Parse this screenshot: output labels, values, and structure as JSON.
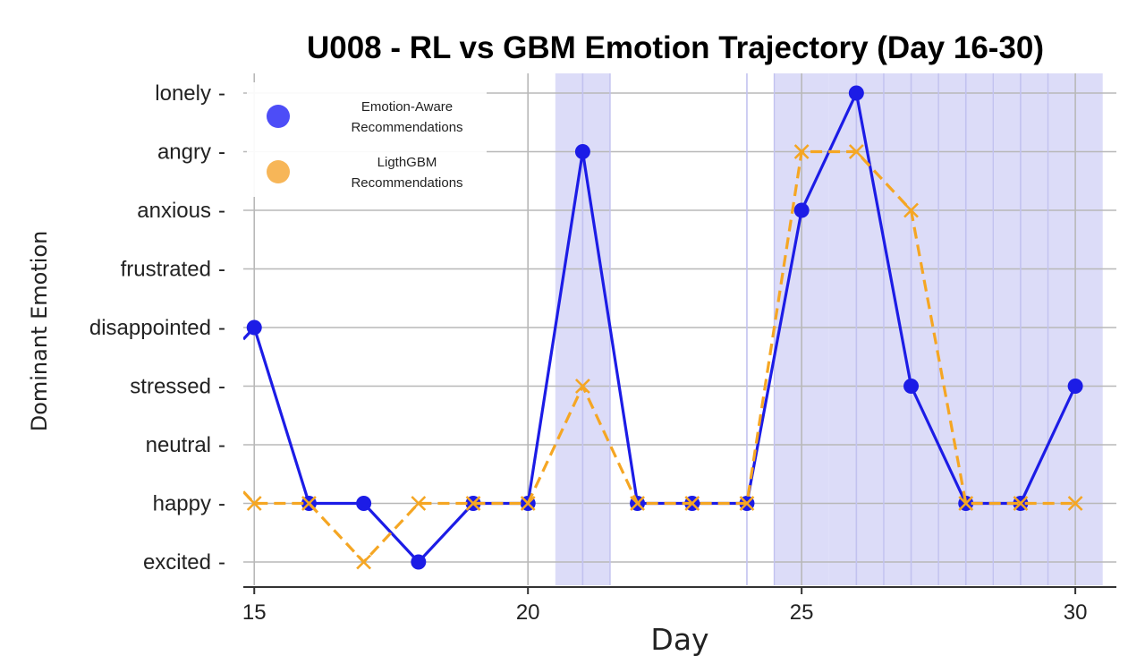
{
  "chart_data": {
    "type": "line",
    "title": "U008 - RL vs GBM Emotion Trajectory (Day 16-30)",
    "xlabel": "Day",
    "ylabel": "Dominant Emotion",
    "x_ticks": [
      15,
      20,
      25,
      30
    ],
    "xlim": [
      14.8,
      30.75
    ],
    "categories": [
      "excited",
      "happy",
      "neutral",
      "stressed",
      "disappointed",
      "frustrated",
      "anxious",
      "angry",
      "lonely"
    ],
    "grid": true,
    "legend_placement": "top-left",
    "highlight_days": [
      21,
      25,
      26,
      27,
      28,
      29,
      30
    ],
    "highlight_color": "#dcdcf8",
    "series": [
      {
        "name": "Emotion-Aware Recommendations",
        "color": "#1c1ce6",
        "style": "solid",
        "marker": "circle",
        "x": [
          15,
          16,
          17,
          18,
          19,
          20,
          21,
          22,
          23,
          24,
          25,
          26,
          27,
          28,
          29,
          30
        ],
        "values": [
          "disappointed",
          "happy",
          "happy",
          "excited",
          "happy",
          "happy",
          "angry",
          "happy",
          "happy",
          "happy",
          "anxious",
          "lonely",
          "stressed",
          "happy",
          "happy",
          "stressed"
        ]
      },
      {
        "name": "LigthGBM Recommendations",
        "color": "#f5a623",
        "style": "dashed",
        "marker": "x",
        "x": [
          15,
          16,
          17,
          18,
          19,
          20,
          21,
          22,
          23,
          24,
          25,
          26,
          27,
          28,
          29,
          30
        ],
        "values": [
          "happy",
          "happy",
          "excited",
          "happy",
          "happy",
          "happy",
          "stressed",
          "happy",
          "happy",
          "happy",
          "angry",
          "angry",
          "anxious",
          "happy",
          "happy",
          "happy"
        ]
      }
    ],
    "legend": {
      "items": [
        {
          "line1": "Emotion-Aware",
          "line2": "Recommendations",
          "color": "#4d4df7"
        },
        {
          "line1": "LigthGBM",
          "line2": "Recommendations",
          "color": "#f7b658"
        }
      ]
    }
  }
}
